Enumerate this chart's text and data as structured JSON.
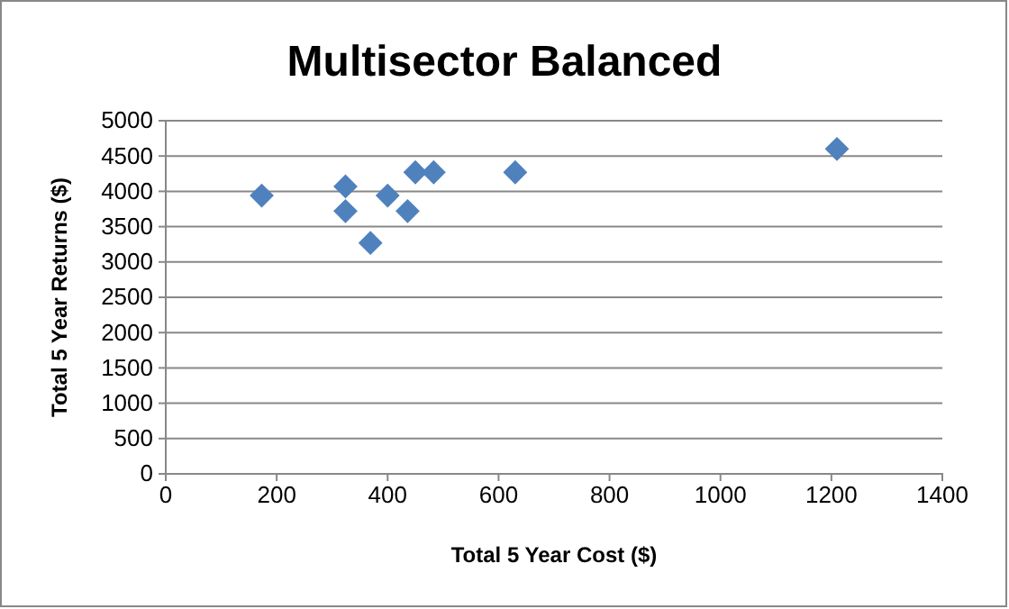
{
  "chart_data": {
    "type": "scatter",
    "title": "Multisector Balanced",
    "xlabel": "Total 5 Year Cost ($)",
    "ylabel": "Total 5 Year Returns ($)",
    "x": [
      173,
      324,
      324,
      369,
      400,
      436,
      450,
      483,
      630,
      1210
    ],
    "series": [
      {
        "color": "#4f81bd",
        "values": [
          3940,
          4070,
          3720,
          3270,
          3940,
          3720,
          4270,
          4270,
          4270,
          4600
        ]
      }
    ],
    "xlim": [
      0,
      1400
    ],
    "xticks": [
      0,
      200,
      400,
      600,
      800,
      1000,
      1200,
      1400
    ],
    "ylim": [
      0,
      5000
    ],
    "yticks": [
      0,
      500,
      1000,
      1500,
      2000,
      2500,
      3000,
      3500,
      4000,
      4500,
      5000
    ],
    "grid": "y",
    "marker": "diamond"
  }
}
